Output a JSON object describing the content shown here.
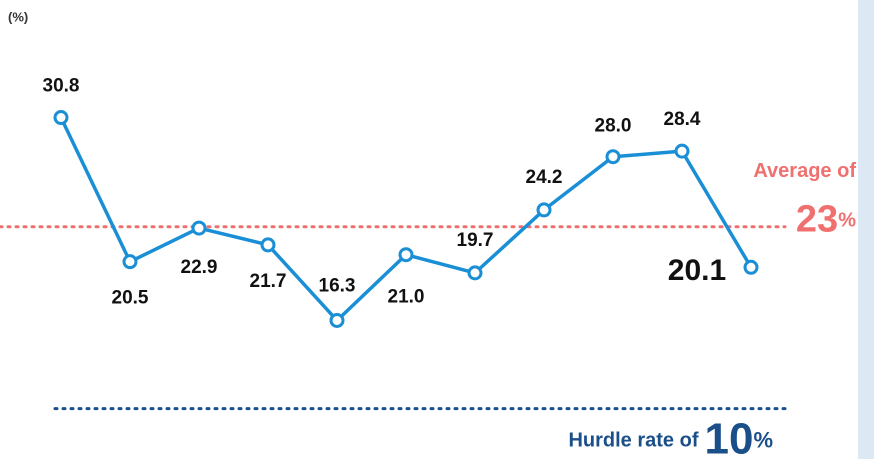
{
  "chart_data": {
    "type": "line",
    "y_label": "(%)",
    "categories": [
      null,
      null,
      null,
      null,
      null,
      null,
      null,
      null,
      null,
      null,
      null
    ],
    "values": [
      30.8,
      20.5,
      22.9,
      21.7,
      16.3,
      21.0,
      19.7,
      24.2,
      28.0,
      28.4,
      20.1
    ],
    "value_labels": [
      "30.8",
      "20.5",
      "22.9",
      "21.7",
      "16.3",
      "21.0",
      "19.7",
      "24.2",
      "28.0",
      "28.4",
      "20.1"
    ],
    "color": "#1a8fd6",
    "ylim": [
      6.4,
      39.2
    ],
    "annotations": [
      {
        "text": "Average of",
        "value": 23,
        "unit": "%",
        "color": "#f07070"
      },
      {
        "text": "Hurdle rate of",
        "value": 10,
        "unit": "%",
        "color": "#1a4f8a"
      }
    ]
  }
}
